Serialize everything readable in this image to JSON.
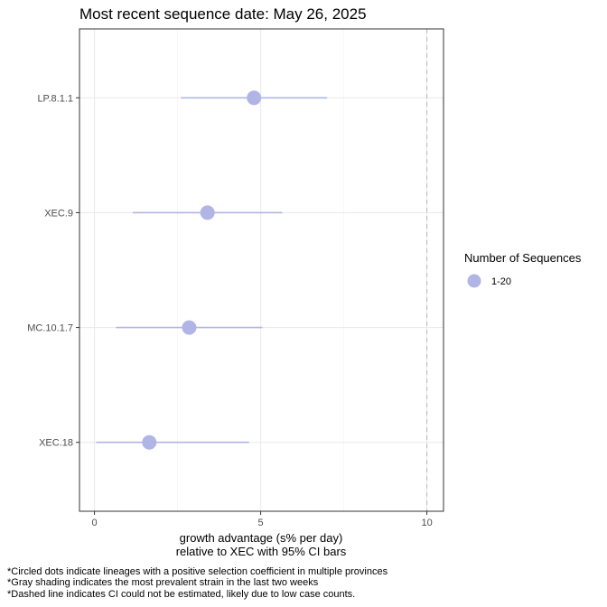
{
  "chart_data": {
    "type": "scatter",
    "title": "Most recent sequence date: May 26, 2025",
    "xlabel_line1": "growth advantage (s% per day)",
    "xlabel_line2": "relative to  XEC  with 95% CI bars",
    "x_ticks": [
      "0",
      "5",
      "10"
    ],
    "xlim": [
      -0.45,
      10.5
    ],
    "grid": true,
    "reference_line": {
      "x": 10,
      "style": "dashed"
    },
    "categories": [
      "LP.8.1.1",
      "XEC.9",
      "MC.10.1.7",
      "XEC.18"
    ],
    "points": [
      {
        "lineage": "LP.8.1.1",
        "value": 4.8,
        "ci_low": 2.6,
        "ci_high": 7.0
      },
      {
        "lineage": "XEC.9",
        "value": 3.4,
        "ci_low": 1.15,
        "ci_high": 5.65
      },
      {
        "lineage": "MC.10.1.7",
        "value": 2.85,
        "ci_low": 0.65,
        "ci_high": 5.05
      },
      {
        "lineage": "XEC.18",
        "value": 1.65,
        "ci_low": 0.05,
        "ci_high": 4.65
      }
    ],
    "legend": {
      "title": "Number of Sequences",
      "entries": [
        "1-20"
      ],
      "position": "right"
    },
    "point_color": "#b0b5e6",
    "footnotes": [
      "*Circled dots indicate lineages with a positive selection coefficient in multiple provinces",
      "*Gray shading indicates the most prevalent strain in the last two weeks",
      "*Dashed line indicates CI could not be estimated, likely due to low case counts."
    ]
  }
}
